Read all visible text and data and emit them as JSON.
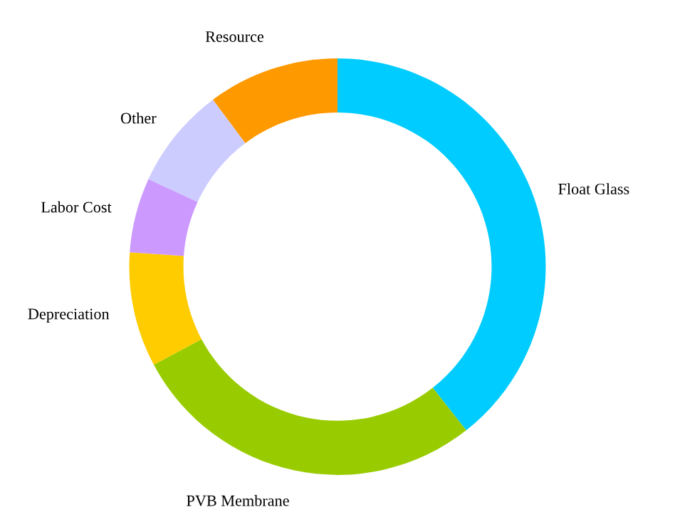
{
  "chart_data": {
    "type": "donut",
    "categories": [
      "Float Glass",
      "PVB Membrane",
      "Depreciation",
      "Labor Cost",
      "Other",
      "Resource"
    ],
    "values": [
      39.4,
      27.8,
      8.9,
      5.8,
      7.9,
      10.2
    ],
    "colors": [
      "#00ccff",
      "#99cc00",
      "#ffcc00",
      "#cc99ff",
      "#ccccff",
      "#ff9900"
    ],
    "legend": false
  }
}
